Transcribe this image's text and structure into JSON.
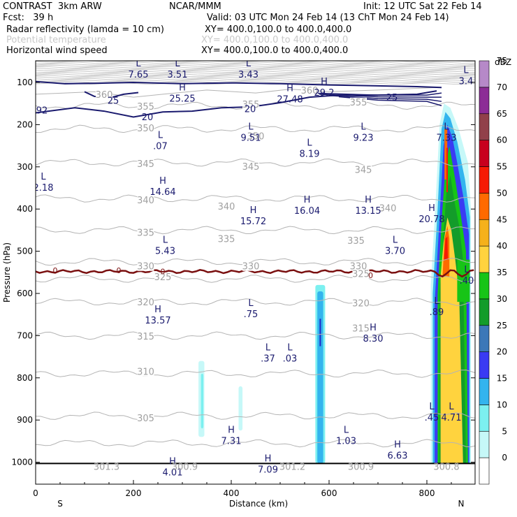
{
  "header": {
    "title_left": "CONTRAST  3km ARW",
    "title_center": "NCAR/MMM",
    "init": "Init: 12 UTC Sat 22 Feb 14",
    "fcst": "Fcst:   39 h",
    "valid": "Valid: 03 UTC Mon 24 Feb 14 (13 ChT Mon 24 Feb 14)",
    "fields": [
      {
        "name": "Radar reflectivity (lamda = 10 cm)",
        "xy": "XY= 400.0,100.0 to 400.0,400.0",
        "color": "#000000"
      },
      {
        "name": "Potential temperature",
        "xy": "XY= 400.0,100.0 to 400.0,400.0",
        "color": "#c8c8c8"
      },
      {
        "name": "Horizontal wind speed",
        "xy": "XY= 400.0,100.0 to 400.0,400.0",
        "color": "#000000"
      }
    ]
  },
  "chart_data": {
    "type": "heatmap",
    "title": "",
    "xlabel": "Distance (km)",
    "ylabel": "Pressure (hPa)",
    "xlim": [
      0,
      900
    ],
    "ylim": [
      1050,
      50
    ],
    "x_ticks": [
      0,
      200,
      400,
      600,
      800
    ],
    "y_ticks": [
      100,
      200,
      300,
      400,
      500,
      600,
      700,
      800,
      900,
      1000
    ],
    "x_end_labels": {
      "left": "S",
      "right": "N"
    },
    "colorbar": {
      "unit": "dBZ",
      "levels": [
        0,
        5,
        10,
        15,
        20,
        25,
        30,
        35,
        40,
        45,
        50,
        55,
        60,
        65,
        70,
        75
      ],
      "colors": [
        "#ffffff",
        "#c6f8f8",
        "#7cf0f0",
        "#33b4ee",
        "#3a3bf3",
        "#3c78b8",
        "#139c2a",
        "#17c417",
        "#ffd33e",
        "#f5b11b",
        "#ff6a00",
        "#f61b05",
        "#c8001e",
        "#91404a",
        "#8c2c96",
        "#b689c8"
      ]
    },
    "theta_labels": [
      {
        "x": 140,
        "p": 128,
        "t": "360"
      },
      {
        "x": 560,
        "p": 118,
        "t": "360"
      },
      {
        "x": 225,
        "p": 156,
        "t": "355"
      },
      {
        "x": 440,
        "p": 151,
        "t": "355"
      },
      {
        "x": 660,
        "p": 146,
        "t": "355"
      },
      {
        "x": 225,
        "p": 208,
        "t": "350"
      },
      {
        "x": 450,
        "p": 227,
        "t": "350"
      },
      {
        "x": 225,
        "p": 292,
        "t": "345"
      },
      {
        "x": 440,
        "p": 299,
        "t": "345"
      },
      {
        "x": 670,
        "p": 306,
        "t": "345"
      },
      {
        "x": 225,
        "p": 378,
        "t": "340"
      },
      {
        "x": 390,
        "p": 393,
        "t": "340"
      },
      {
        "x": 720,
        "p": 397,
        "t": "340"
      },
      {
        "x": 225,
        "p": 455,
        "t": "335"
      },
      {
        "x": 390,
        "p": 470,
        "t": "335"
      },
      {
        "x": 655,
        "p": 474,
        "t": "335"
      },
      {
        "x": 225,
        "p": 535,
        "t": "330"
      },
      {
        "x": 440,
        "p": 535,
        "t": "330"
      },
      {
        "x": 660,
        "p": 535,
        "t": "330"
      },
      {
        "x": 260,
        "p": 560,
        "t": "325"
      },
      {
        "x": 665,
        "p": 553,
        "t": "325"
      },
      {
        "x": 225,
        "p": 620,
        "t": "320"
      },
      {
        "x": 665,
        "p": 622,
        "t": "320"
      },
      {
        "x": 225,
        "p": 701,
        "t": "315"
      },
      {
        "x": 665,
        "p": 682,
        "t": "315"
      },
      {
        "x": 225,
        "p": 785,
        "t": "310"
      },
      {
        "x": 225,
        "p": 895,
        "t": "305"
      }
    ],
    "wind_contour_labels": [
      {
        "x": 150,
        "p": 142,
        "t": "25"
      },
      {
        "x": 720,
        "p": 135,
        "t": "25"
      },
      {
        "x": 220,
        "p": 181,
        "t": "20"
      },
      {
        "x": 430,
        "p": 162,
        "t": "20"
      },
      {
        "x": 0,
        "p": 165,
        "t": "92"
      }
    ],
    "zero_contour_labels": [
      {
        "x": 40,
        "p": 545,
        "t": "0"
      },
      {
        "x": 170,
        "p": 545,
        "t": "0"
      },
      {
        "x": 260,
        "p": 548,
        "t": "0"
      },
      {
        "x": 685,
        "p": 557,
        "t": "0"
      }
    ],
    "extrema": [
      {
        "x": 210,
        "p": 62,
        "k": "L",
        "v": "7.65"
      },
      {
        "x": 290,
        "p": 62,
        "k": "L",
        "v": "3.51"
      },
      {
        "x": 435,
        "p": 62,
        "k": "L",
        "v": "3.43"
      },
      {
        "x": 880,
        "p": 78,
        "k": "L",
        "v": "3.4"
      },
      {
        "x": 300,
        "p": 119,
        "k": "H",
        "v": "25.25"
      },
      {
        "x": 520,
        "p": 121,
        "k": "H",
        "v": "27.48"
      },
      {
        "x": 590,
        "p": 105,
        "k": "H",
        "v": "29.2"
      },
      {
        "x": 255,
        "p": 232,
        "k": "L",
        "v": ".07"
      },
      {
        "x": 440,
        "p": 212,
        "k": "L",
        "v": "9.51"
      },
      {
        "x": 560,
        "p": 250,
        "k": "L",
        "v": "8.19"
      },
      {
        "x": 670,
        "p": 212,
        "k": "L",
        "v": "9.23"
      },
      {
        "x": 840,
        "p": 212,
        "k": "L",
        "v": "7.33"
      },
      {
        "x": 15,
        "p": 330,
        "k": "L",
        "v": "2.18"
      },
      {
        "x": 260,
        "p": 340,
        "k": "H",
        "v": "14.64"
      },
      {
        "x": 445,
        "p": 410,
        "k": "H",
        "v": "15.72"
      },
      {
        "x": 555,
        "p": 385,
        "k": "H",
        "v": "16.04"
      },
      {
        "x": 680,
        "p": 385,
        "k": "H",
        "v": "13.15"
      },
      {
        "x": 810,
        "p": 405,
        "k": "H",
        "v": "20.78"
      },
      {
        "x": 265,
        "p": 480,
        "k": "L",
        "v": "5.43"
      },
      {
        "x": 735,
        "p": 480,
        "k": "L",
        "v": "3.70"
      },
      {
        "x": 890,
        "p": 550,
        "k": "L",
        "v": ".40"
      },
      {
        "x": 440,
        "p": 630,
        "k": "L",
        "v": ".75"
      },
      {
        "x": 820,
        "p": 625,
        "k": "L",
        "v": ".89"
      },
      {
        "x": 250,
        "p": 645,
        "k": "H",
        "v": "13.57"
      },
      {
        "x": 690,
        "p": 688,
        "k": "H",
        "v": "8.30"
      },
      {
        "x": 475,
        "p": 735,
        "k": "L",
        "v": ".37"
      },
      {
        "x": 520,
        "p": 735,
        "k": "L",
        "v": ".03"
      },
      {
        "x": 810,
        "p": 875,
        "k": "L",
        "v": ".45"
      },
      {
        "x": 850,
        "p": 875,
        "k": "L",
        "v": "4.71"
      },
      {
        "x": 400,
        "p": 930,
        "k": "H",
        "v": "7.31"
      },
      {
        "x": 635,
        "p": 930,
        "k": "L",
        "v": "1.03"
      },
      {
        "x": 740,
        "p": 965,
        "k": "H",
        "v": "6.63"
      },
      {
        "x": 280,
        "p": 1005,
        "k": "H",
        "v": "4.01"
      },
      {
        "x": 475,
        "p": 998,
        "k": "H",
        "v": "7.09"
      }
    ],
    "surface_theta_labels": [
      {
        "x": 145,
        "t": "301.3"
      },
      {
        "x": 305,
        "t": "300.9"
      },
      {
        "x": 525,
        "t": "301.2"
      },
      {
        "x": 665,
        "t": "300.9"
      },
      {
        "x": 840,
        "t": "300.8"
      }
    ],
    "radar_columns": [
      {
        "x1": 333,
        "x2": 345,
        "p_top": 760,
        "p_bot": 940,
        "level": 1
      },
      {
        "x1": 338,
        "x2": 343,
        "p_top": 790,
        "p_bot": 920,
        "level": 2
      },
      {
        "x1": 415,
        "x2": 423,
        "p_top": 820,
        "p_bot": 925,
        "level": 1
      },
      {
        "x1": 572,
        "x2": 592,
        "p_top": 580,
        "p_bot": 1003,
        "level": 2
      },
      {
        "x1": 576,
        "x2": 588,
        "p_top": 595,
        "p_bot": 1003,
        "level": 3
      }
    ]
  }
}
